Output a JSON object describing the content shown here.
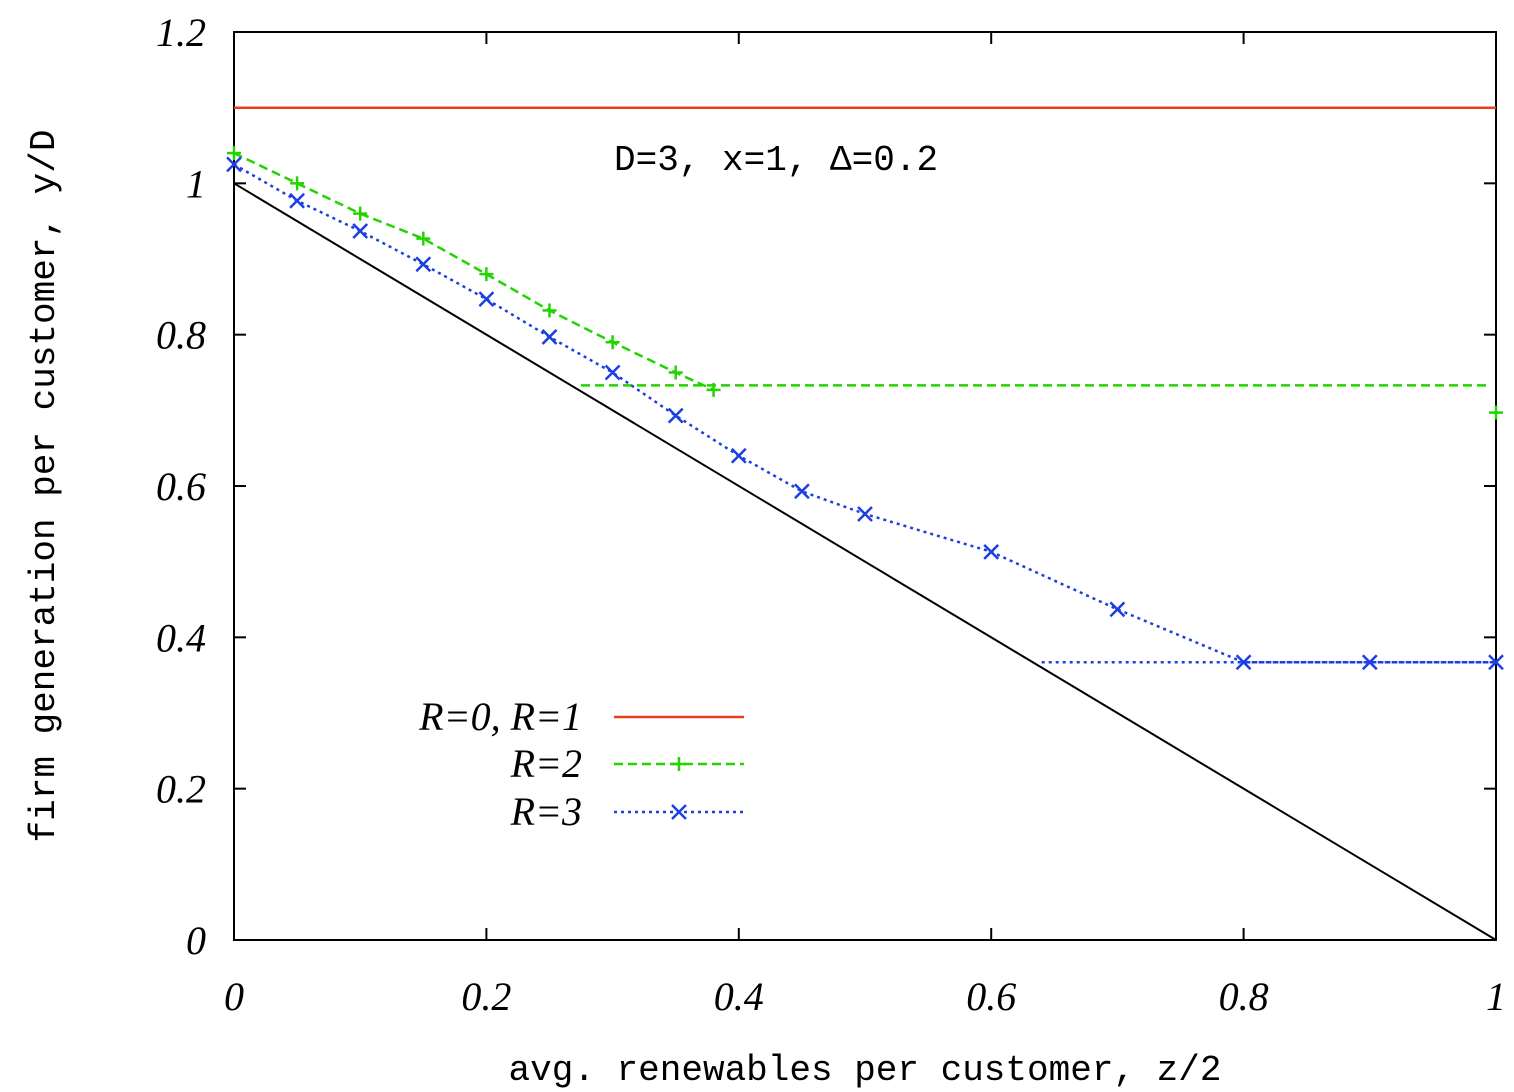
{
  "chart_data": {
    "type": "line",
    "xlabel": "avg. renewables per customer, z/2",
    "ylabel": "firm generation per customer, y/D",
    "xlim": [
      0,
      1
    ],
    "ylim": [
      0,
      1.2
    ],
    "x_ticks": [
      0,
      0.2,
      0.4,
      0.6,
      0.8,
      1
    ],
    "x_tick_labels": [
      "0",
      "0.2",
      "0.4",
      "0.6",
      "0.8",
      "1"
    ],
    "y_ticks": [
      0,
      0.2,
      0.4,
      0.6,
      0.8,
      1,
      1.2
    ],
    "y_tick_labels": [
      "0",
      "0.2",
      "0.4",
      "0.6",
      "0.8",
      "1",
      "1.2"
    ],
    "annotation": "D=3, x=1, Δ=0.2",
    "grid": false,
    "legend_position": "bottom-left",
    "series": [
      {
        "name": "R=0, R=1",
        "color": "#e8401c",
        "style": "solid",
        "marker": "none",
        "x": [
          0,
          1
        ],
        "y": [
          1.1,
          1.1
        ]
      },
      {
        "name": "R=2",
        "color": "#22d400",
        "style": "dashed",
        "marker": "plus",
        "x": [
          0,
          0.05,
          0.1,
          0.15,
          0.2,
          0.25,
          0.3,
          0.35,
          0.38
        ],
        "y": [
          1.04,
          1.0,
          0.96,
          0.927,
          0.88,
          0.832,
          0.79,
          0.75,
          0.727
        ]
      },
      {
        "name": "R=2 plateau",
        "color": "#22d400",
        "style": "dashed",
        "marker": "none",
        "x": [
          0.275,
          0.995
        ],
        "y": [
          0.733,
          0.733
        ]
      },
      {
        "name": "R=3",
        "color": "#1b3fe0",
        "style": "dotted",
        "marker": "x",
        "x": [
          0,
          0.05,
          0.1,
          0.15,
          0.2,
          0.25,
          0.3,
          0.35,
          0.4,
          0.45,
          0.5,
          0.6,
          0.7,
          0.8,
          0.9,
          1.0
        ],
        "y": [
          1.025,
          0.977,
          0.937,
          0.893,
          0.847,
          0.797,
          0.75,
          0.693,
          0.64,
          0.593,
          0.563,
          0.513,
          0.437,
          0.367,
          0.367,
          0.367
        ]
      },
      {
        "name": "R=3 plateau",
        "color": "#1b3fe0",
        "style": "dotted",
        "marker": "none",
        "x": [
          0.64,
          1.0
        ],
        "y": [
          0.367,
          0.367
        ]
      },
      {
        "name": "bound",
        "color": "#000000",
        "style": "solid",
        "marker": "none",
        "x": [
          0,
          1
        ],
        "y": [
          1.0,
          0.0
        ]
      }
    ],
    "extra_points": [
      {
        "x": 1.0,
        "y": 0.697,
        "color": "#22d400",
        "marker": "plus"
      }
    ],
    "legend": [
      {
        "label": "R=0, R=1",
        "series": 0
      },
      {
        "label": "R=2",
        "series": 1
      },
      {
        "label": "R=3",
        "series": 3
      }
    ]
  }
}
